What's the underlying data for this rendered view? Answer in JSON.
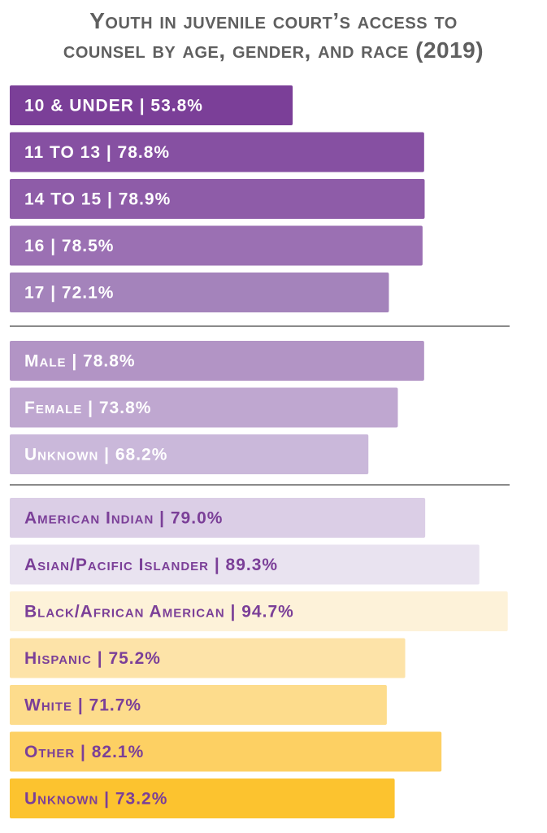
{
  "chart_data": {
    "type": "bar",
    "orientation": "horizontal",
    "title_lines": [
      "Youth in juvenile court’s access to",
      "counsel by age, gender, and race (2019)"
    ],
    "groups": [
      {
        "bars": [
          {
            "category": "10 & UNDER",
            "value": 53.8,
            "label": "10 & UNDER  |  53.8%",
            "color": "#7b3f98",
            "text_color": "#ffffff"
          },
          {
            "category": "11 TO 13",
            "value": 78.8,
            "label": "11 TO 13  |  78.8%",
            "color": "#8650a2",
            "text_color": "#ffffff"
          },
          {
            "category": "14 TO 15",
            "value": 78.9,
            "label": "14 TO 15  |  78.9%",
            "color": "#8e5ca8",
            "text_color": "#ffffff"
          },
          {
            "category": "16",
            "value": 78.5,
            "label": "16  |  78.5%",
            "color": "#9b70b3",
            "text_color": "#ffffff"
          },
          {
            "category": "17",
            "value": 72.1,
            "label": "17  |  72.1%",
            "color": "#a483bb",
            "text_color": "#ffffff"
          }
        ]
      },
      {
        "bars": [
          {
            "category": "Male",
            "value": 78.8,
            "label": "Male  |  78.8%",
            "color": "#b294c5",
            "text_color": "#ffffff"
          },
          {
            "category": "Female",
            "value": 73.8,
            "label": "Female  |  73.8%",
            "color": "#bfa7d0",
            "text_color": "#ffffff"
          },
          {
            "category": "Unknown",
            "value": 68.2,
            "label": "Unknown  |  68.2%",
            "color": "#cab8da",
            "text_color": "#ffffff"
          }
        ]
      },
      {
        "bars": [
          {
            "category": "American Indian",
            "value": 79.0,
            "label": "American Indian  |  79.0%",
            "color": "#dbcee6",
            "text_color": "#7b3f98"
          },
          {
            "category": "Asian/Pacific Islander",
            "value": 89.3,
            "label": "Asian/Pacific Islander  |  89.3%",
            "color": "#e9e3f0",
            "text_color": "#7b3f98"
          },
          {
            "category": "Black/African American",
            "value": 94.7,
            "label": "Black/African American  |  94.7%",
            "color": "#fdf2d9",
            "text_color": "#7b3f98"
          },
          {
            "category": "Hispanic",
            "value": 75.2,
            "label": "Hispanic  |  75.2%",
            "color": "#fde3a8",
            "text_color": "#7b3f98"
          },
          {
            "category": "White",
            "value": 71.7,
            "label": "White  |  71.7%",
            "color": "#fddc8c",
            "text_color": "#7b3f98"
          },
          {
            "category": "Other",
            "value": 82.1,
            "label": "Other  |  82.1%",
            "color": "#fdd063",
            "text_color": "#7b3f98"
          },
          {
            "category": "Unknown",
            "value": 73.2,
            "label": "Unknown  |  73.2%",
            "color": "#fcc32f",
            "text_color": "#7b3f98"
          }
        ]
      }
    ],
    "xlim": [
      0,
      100
    ],
    "divider_color": "#8a8a8a"
  }
}
